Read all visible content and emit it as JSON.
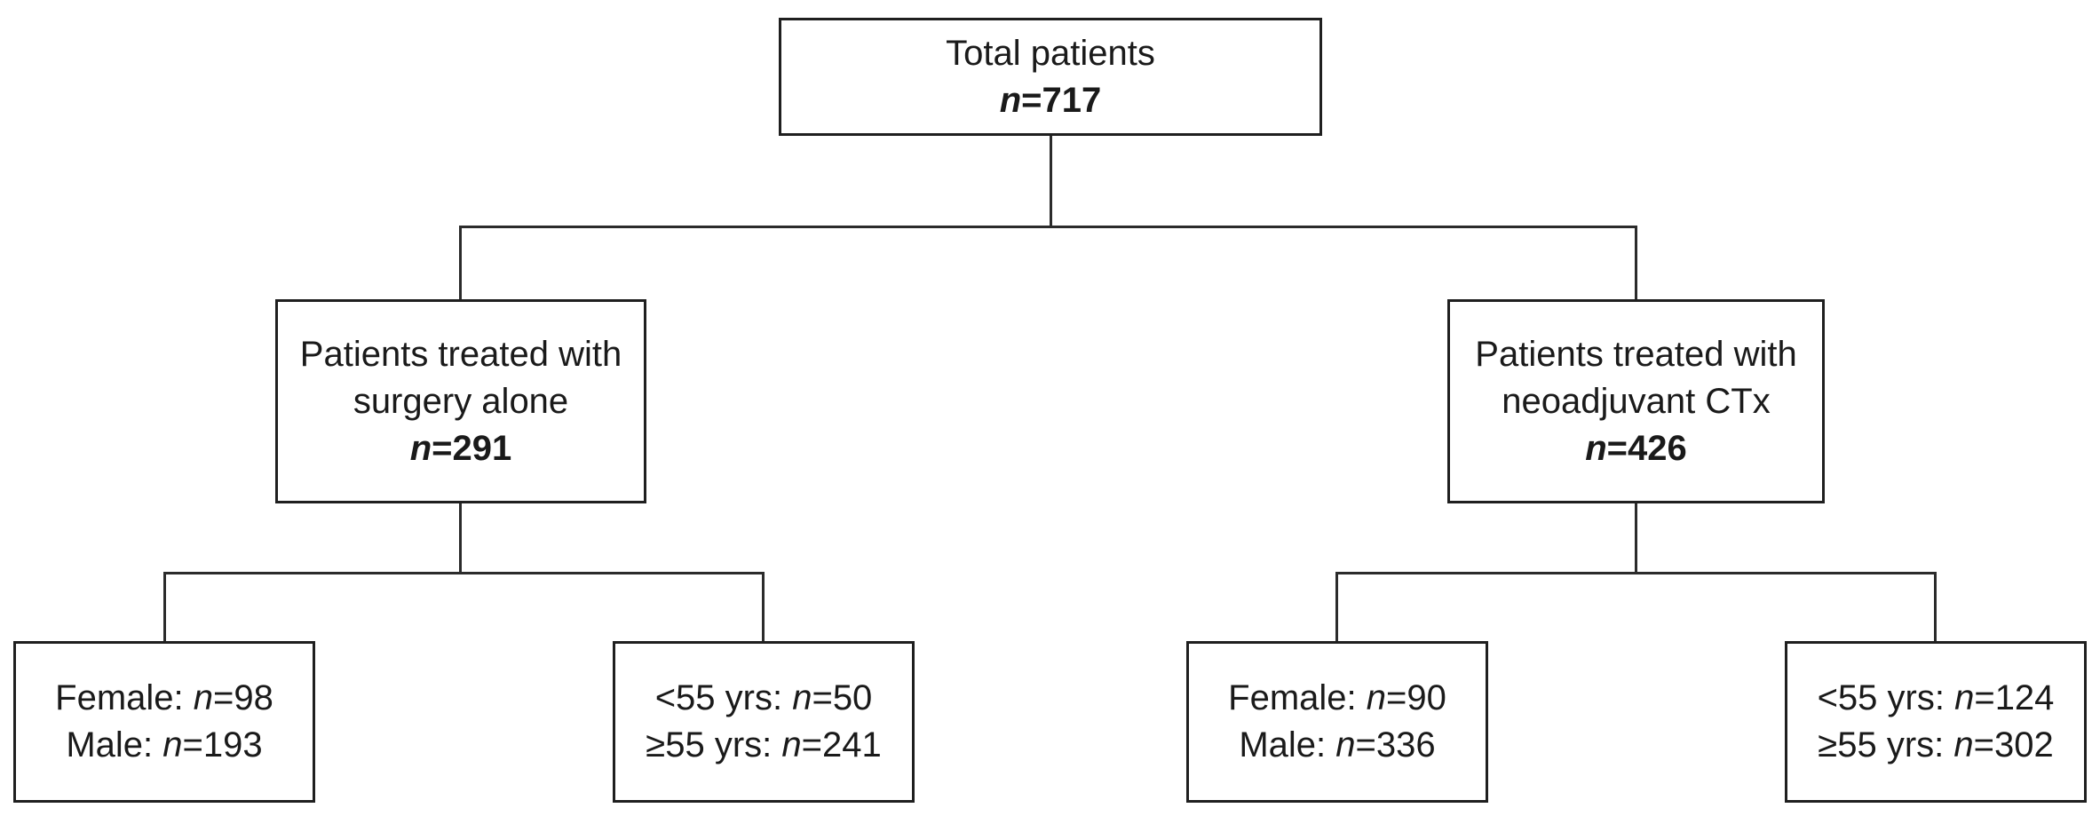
{
  "diagram": {
    "root": {
      "label_lines": [
        "Total patients"
      ],
      "n_var": "n",
      "count": "=717"
    },
    "branches": [
      {
        "label_lines": [
          "Patients treated with",
          "surgery alone"
        ],
        "n_var": "n",
        "count": "=291",
        "children": [
          {
            "lines": [
              {
                "pre": "Female: ",
                "n_var": "n",
                "post": "=98"
              },
              {
                "pre": "Male: ",
                "n_var": "n",
                "post": "=193"
              }
            ]
          },
          {
            "lines": [
              {
                "pre": "<55 yrs: ",
                "n_var": "n",
                "post": "=50"
              },
              {
                "pre": "≥55 yrs: ",
                "n_var": "n",
                "post": "=241"
              }
            ]
          }
        ]
      },
      {
        "label_lines": [
          "Patients treated with",
          "neoadjuvant CTx"
        ],
        "n_var": "n",
        "count": "=426",
        "children": [
          {
            "lines": [
              {
                "pre": "Female: ",
                "n_var": "n",
                "post": "=90"
              },
              {
                "pre": "Male: ",
                "n_var": "n",
                "post": "=336"
              }
            ]
          },
          {
            "lines": [
              {
                "pre": "<55 yrs: ",
                "n_var": "n",
                "post": "=124"
              },
              {
                "pre": "≥55 yrs: ",
                "n_var": "n",
                "post": "=302"
              }
            ]
          }
        ]
      }
    ],
    "colors": {
      "ink": "#1f1f1f",
      "background": "#ffffff"
    }
  }
}
